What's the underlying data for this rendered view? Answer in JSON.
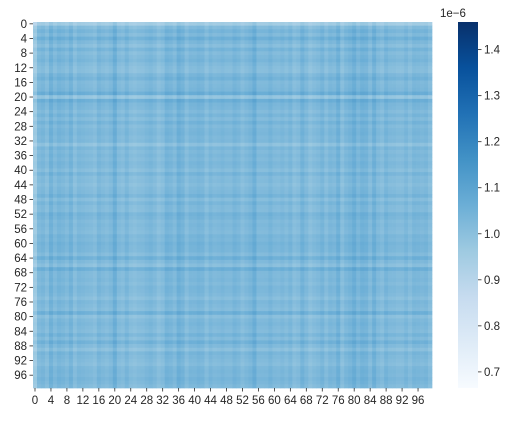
{
  "chart_data": {
    "type": "heatmap",
    "title": "",
    "xlabel": "",
    "ylabel": "",
    "rows": 100,
    "cols": 100,
    "x_tick_labels": [
      "0",
      "4",
      "8",
      "12",
      "16",
      "20",
      "24",
      "28",
      "32",
      "36",
      "40",
      "44",
      "48",
      "52",
      "56",
      "60",
      "64",
      "68",
      "72",
      "76",
      "80",
      "84",
      "88",
      "92",
      "96"
    ],
    "y_tick_labels": [
      "0",
      "4",
      "8",
      "12",
      "16",
      "20",
      "24",
      "28",
      "32",
      "36",
      "40",
      "44",
      "48",
      "52",
      "56",
      "60",
      "64",
      "68",
      "72",
      "76",
      "80",
      "84",
      "88",
      "92",
      "96"
    ],
    "colormap": "Blues",
    "colormap_stops": [
      "#f7fbff",
      "#deebf7",
      "#c6dbef",
      "#9ecae1",
      "#6baed6",
      "#4292c6",
      "#2171b5",
      "#08519c",
      "#08306b"
    ],
    "value_range": [
      0.665,
      1.46
    ],
    "colorbar": {
      "exponent_label": "1e−6",
      "ticks": [
        0.7,
        0.8,
        0.9,
        1.0,
        1.1,
        1.2,
        1.3,
        1.4
      ],
      "tick_labels": [
        "0.7",
        "0.8",
        "0.9",
        "1.0",
        "1.1",
        "1.2",
        "1.3",
        "1.4"
      ]
    },
    "row_factors": [
      0.925,
      0.988,
      1.012,
      0.992,
      1.028,
      0.998,
      0.979,
      1.013,
      0.988,
      0.999,
      1.009,
      0.992,
      0.982,
      0.978,
      1.004,
      1.019,
      0.993,
      0.998,
      1.004,
      1.036,
      0.955,
      1.033,
      1.008,
      1.003,
      0.988,
      1.009,
      0.987,
      1.014,
      0.992,
      1.003,
      1.007,
      0.996,
      1.001,
      0.965,
      1.004,
      0.991,
      1.002,
      0.992,
      1.004,
      0.999,
      0.981,
      1.011,
      0.988,
      0.992,
      0.981,
      0.993,
      0.996,
      1.015,
      0.981,
      1.007,
      0.991,
      0.988,
      1.016,
      1.008,
      0.993,
      1.001,
      0.995,
      0.989,
      1.008,
      1.002,
      1.015,
      1.008,
      1.007,
      0.988,
      1.028,
      0.995,
      0.974,
      1.032,
      0.997,
      0.996,
      1.002,
      0.991,
      1.005,
      1.002,
      0.995,
      0.979,
      1.003,
      0.995,
      0.986,
      1.029,
      0.976,
      0.996,
      1.004,
      0.995,
      0.987,
      1.013,
      0.988,
      1.023,
      0.996,
      0.971,
      1.008,
      0.999,
      0.991,
      0.983,
      1.001,
      1.006,
      1.001,
      1.012,
      1.004,
      0.992
    ],
    "col_factors": [
      0.935,
      0.996,
      1.005,
      0.985,
      1.024,
      0.995,
      1.014,
      1.006,
      0.993,
      1.018,
      0.981,
      1.003,
      0.998,
      0.992,
      0.989,
      0.979,
      1.008,
      0.995,
      0.987,
      0.999,
      1.034,
      0.991,
      0.983,
      1.005,
      0.983,
      0.976,
      0.985,
      0.987,
      0.998,
      1.006,
      0.994,
      0.975,
      0.986,
      1.016,
      1.009,
      0.993,
      1.028,
      1.014,
      0.984,
      1.004,
      1.003,
      1.012,
      1.008,
      0.983,
      1.005,
      0.993,
      0.997,
      1.005,
      0.996,
      0.995,
      1.012,
      1.003,
      0.984,
      0.997,
      1.008,
      1.034,
      0.995,
      0.996,
      0.997,
      1.011,
      0.995,
      0.992,
      1.001,
      0.989,
      1.005,
      0.979,
      0.988,
      1.018,
      0.996,
      0.974,
      0.987,
      0.995,
      1.011,
      0.984,
      1.005,
      0.998,
      1.027,
      0.979,
      1.003,
      1.014,
      1.035,
      1.004,
      1.023,
      1.018,
      0.991,
      1.028,
      0.995,
      0.984,
      1.011,
      0.996,
      0.995,
      0.988,
      0.988,
      1.004,
      0.985,
      1.006,
      1.003,
      0.998,
      1.004,
      0.982
    ],
    "base_value": 1.03,
    "value_formula": "value[i][j] = base_value * row_factors[i] * col_factors[j]"
  }
}
